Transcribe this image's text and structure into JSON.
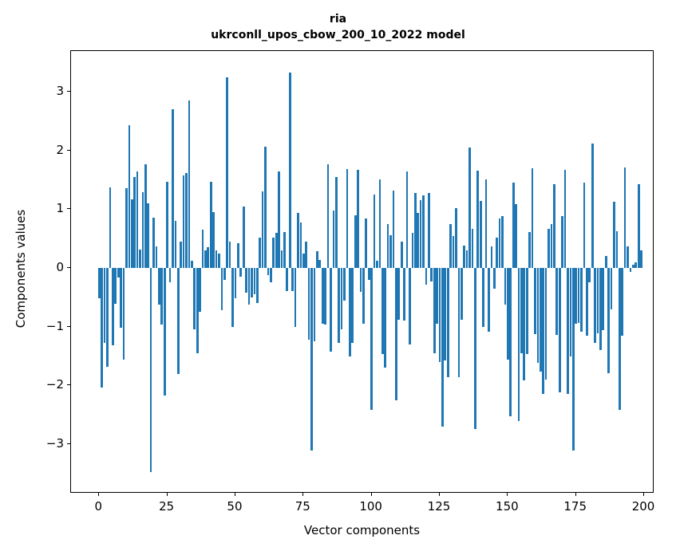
{
  "figure": {
    "title_line1": "ria",
    "title_line2": "ukrconll_upos_cbow_200_10_2022 model"
  },
  "chart_data": {
    "type": "bar",
    "title": "ria",
    "subtitle": "ukrconll_upos_cbow_200_10_2022 model",
    "xlabel": "Vector components",
    "ylabel": "Components values",
    "bar_color": "#1f77b4",
    "grid": false,
    "legend": "none",
    "xlim": [
      -10.34,
      203.8
    ],
    "ylim": [
      -3.84,
      3.69
    ],
    "xticks": [
      0,
      25,
      50,
      75,
      100,
      125,
      150,
      175,
      200
    ],
    "yticks": [
      -3,
      -2,
      -1,
      0,
      1,
      2,
      3
    ],
    "n_components": 200,
    "values": [
      -0.51,
      -2.04,
      -1.27,
      -1.68,
      1.37,
      -1.31,
      -0.61,
      -0.16,
      -1.02,
      -1.56,
      1.36,
      2.43,
      1.17,
      1.55,
      1.64,
      0.31,
      1.29,
      1.76,
      1.1,
      -3.48,
      0.85,
      0.37,
      -0.63,
      -0.97,
      -2.17,
      1.47,
      -0.25,
      2.7,
      0.8,
      -1.8,
      0.45,
      1.58,
      1.62,
      2.85,
      0.12,
      -1.05,
      -1.45,
      -0.75,
      0.65,
      0.3,
      0.35,
      1.47,
      0.95,
      0.3,
      0.25,
      -0.72,
      -0.2,
      3.24,
      0.45,
      -1.0,
      -0.52,
      0.42,
      -0.15,
      1.04,
      -0.42,
      -0.63,
      -0.5,
      -0.45,
      -0.6,
      0.52,
      1.3,
      2.06,
      -0.12,
      -0.25,
      0.52,
      0.6,
      1.64,
      0.3,
      0.61,
      -0.4,
      3.32,
      -0.4,
      -1.0,
      0.93,
      0.77,
      0.25,
      0.45,
      -1.22,
      -3.11,
      -1.25,
      0.28,
      0.13,
      -0.95,
      -0.97,
      1.76,
      -1.43,
      0.98,
      1.54,
      -1.27,
      -1.04,
      -0.55,
      1.68,
      -1.5,
      -1.27,
      0.89,
      1.67,
      -0.41,
      -0.95,
      0.84,
      -0.2,
      -2.42,
      1.25,
      0.12,
      1.5,
      -1.47,
      -1.7,
      0.74,
      0.55,
      1.31,
      -2.25,
      -0.88,
      0.45,
      -0.9,
      1.64,
      -1.3,
      0.6,
      1.28,
      0.93,
      1.15,
      1.23,
      -0.29,
      1.27,
      -0.23,
      -1.45,
      -0.95,
      -1.6,
      -2.7,
      -1.58,
      -1.86,
      0.75,
      0.54,
      1.02,
      -1.86,
      -0.88,
      0.38,
      0.3,
      2.05,
      0.66,
      -2.74,
      1.65,
      1.14,
      -1.0,
      1.5,
      -1.09,
      0.36,
      -0.36,
      0.51,
      0.84,
      0.88,
      -0.63,
      -1.56,
      -2.53,
      1.45,
      1.09,
      -2.6,
      -1.45,
      -1.92,
      -1.47,
      0.61,
      1.7,
      -1.13,
      -1.61,
      -1.76,
      -2.15,
      -1.9,
      0.66,
      0.75,
      1.43,
      -1.14,
      -2.12,
      0.88,
      1.67,
      -2.15,
      -1.51,
      -3.11,
      -0.95,
      -0.93,
      -1.09,
      1.45,
      -1.15,
      -0.25,
      2.12,
      -1.27,
      -1.11,
      -1.4,
      -1.06,
      0.2,
      -1.79,
      -0.7,
      1.13,
      0.63,
      -2.42,
      -1.15,
      1.71,
      0.36,
      -0.07,
      0.05,
      0.1,
      1.42,
      0.3
    ]
  }
}
